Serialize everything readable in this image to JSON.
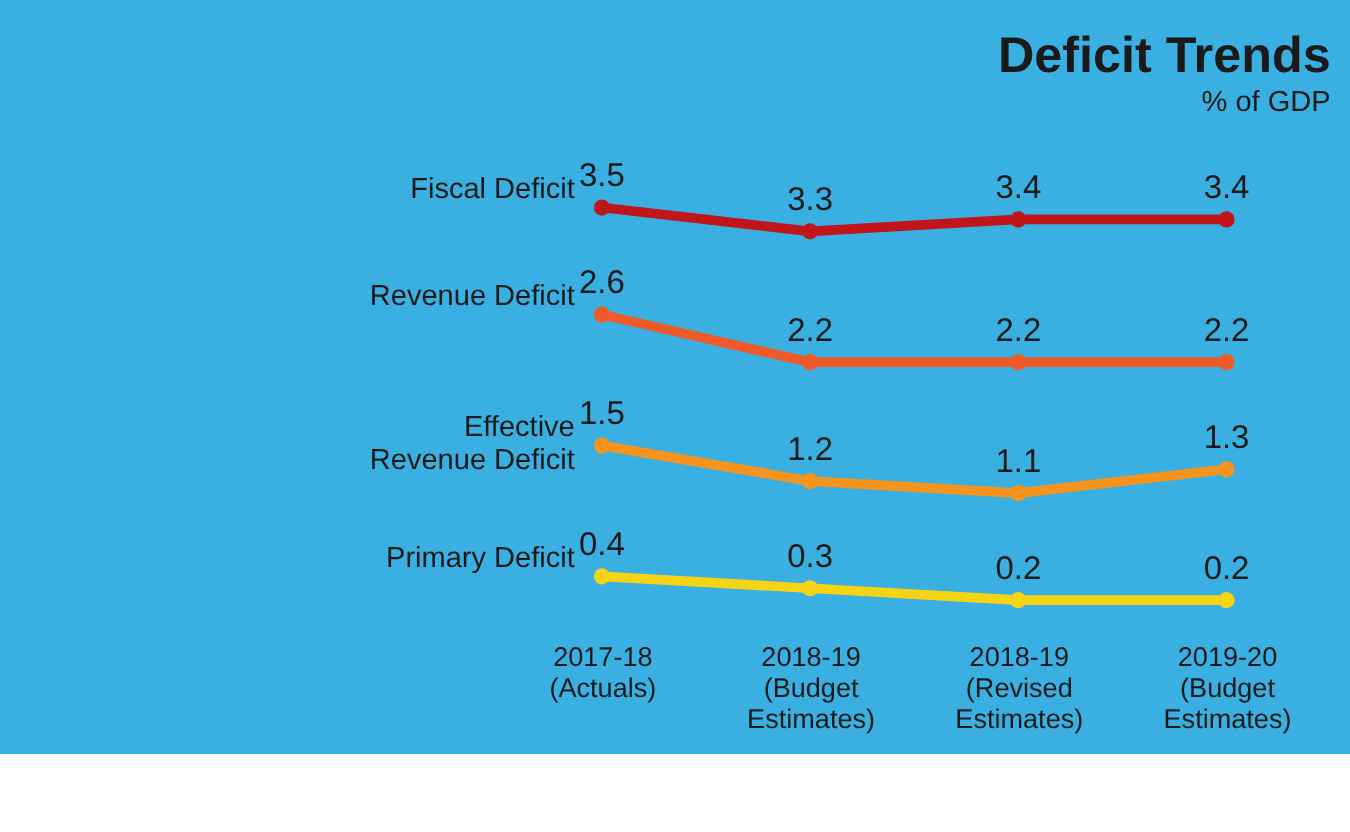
{
  "chart_data": {
    "type": "line",
    "title": "Deficit Trends",
    "subtitle": "% of GDP",
    "categories": [
      "2017-18\n(Actuals)",
      "2018-19\n(Budget\nEstimates)",
      "2018-19\n(Revised\nEstimates)",
      "2019-20\n(Budget\nEstimates)"
    ],
    "series": [
      {
        "name": "Fiscal Deficit",
        "color": "#c0161b",
        "values": [
          3.5,
          3.3,
          3.4,
          3.4
        ]
      },
      {
        "name": "Revenue Deficit",
        "color": "#f05a28",
        "values": [
          2.6,
          2.2,
          2.2,
          2.2
        ]
      },
      {
        "name": "Effective\nRevenue Deficit",
        "color": "#f7941d",
        "values": [
          1.5,
          1.2,
          1.1,
          1.3
        ]
      },
      {
        "name": "Primary Deficit",
        "color": "#f5d416",
        "values": [
          0.4,
          0.3,
          0.2,
          0.2
        ]
      }
    ],
    "data_labels": true,
    "marker": "circle",
    "line_style": "solid",
    "tick_labels": "x"
  }
}
